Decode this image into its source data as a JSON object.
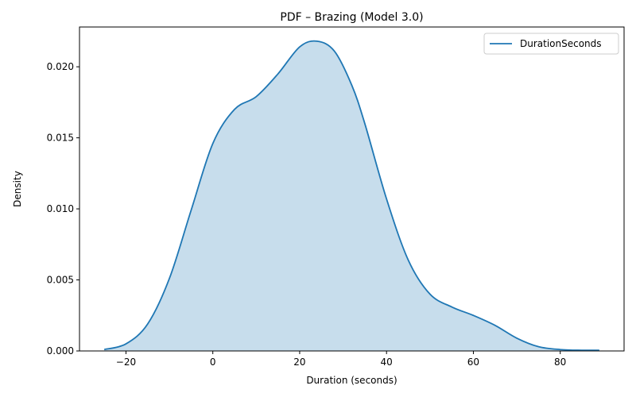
{
  "chart_data": {
    "type": "area",
    "title": "PDF – Brazing (Model 3.0)",
    "xlabel": "Duration (seconds)",
    "ylabel": "Density",
    "xlim": [
      -30.7,
      94.7
    ],
    "ylim": [
      0,
      0.0228
    ],
    "x_ticks": [
      -20,
      0,
      20,
      40,
      60,
      80
    ],
    "x_tick_labels": [
      "−20",
      "0",
      "20",
      "40",
      "60",
      "80"
    ],
    "y_ticks": [
      0,
      0.005,
      0.01,
      0.015,
      0.02
    ],
    "y_tick_labels": [
      "0.000",
      "0.005",
      "0.010",
      "0.015",
      "0.020"
    ],
    "grid": false,
    "legend_position": "top-right",
    "series": [
      {
        "name": "DurationSeconds",
        "color": "#1f77b4",
        "fill_color": "#1f77b4",
        "fill_opacity": 0.25,
        "x": [
          -25,
          -20,
          -15,
          -10,
          -5,
          0,
          5,
          10,
          15,
          20,
          24,
          28,
          32,
          35,
          40,
          45,
          50,
          55,
          60,
          65,
          70,
          75,
          80,
          85,
          89
        ],
        "y": [
          0.0001,
          0.0005,
          0.0019,
          0.0051,
          0.0099,
          0.0146,
          0.017,
          0.0179,
          0.0195,
          0.0214,
          0.0218,
          0.0211,
          0.0187,
          0.016,
          0.0107,
          0.0064,
          0.004,
          0.0031,
          0.0025,
          0.0018,
          0.0009,
          0.0003,
          0.0001,
          5e-05,
          5e-05
        ]
      }
    ]
  }
}
